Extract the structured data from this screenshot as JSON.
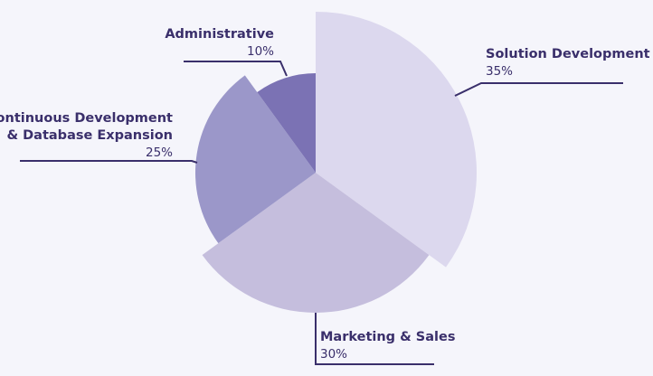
{
  "chart_data": {
    "type": "pie",
    "title": "",
    "legend": "none",
    "slices": [
      {
        "label": "Solution Development",
        "value": 35,
        "display": "35%",
        "color": "#dcd8ee"
      },
      {
        "label": "Marketing & Sales",
        "value": 30,
        "display": "30%",
        "color": "#c5bedd"
      },
      {
        "label": "Continuous Development & Database Expansion",
        "label_lines": [
          "Continuous Development",
          "& Database Expansion"
        ],
        "value": 25,
        "display": "25%",
        "color": "#9b97c9"
      },
      {
        "label": "Administrative",
        "value": 10,
        "display": "10%",
        "color": "#7b72b4"
      }
    ]
  }
}
